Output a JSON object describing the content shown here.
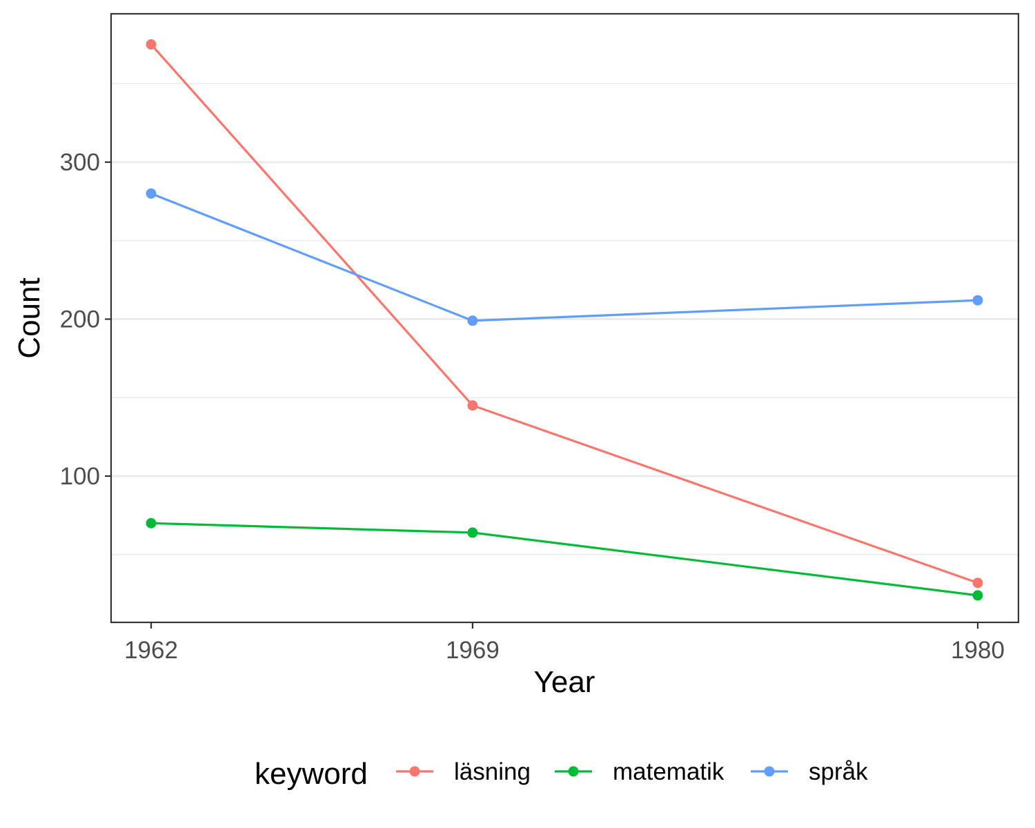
{
  "chart_data": {
    "type": "line",
    "x": [
      "1962",
      "1969",
      "1980"
    ],
    "x_numeric": [
      1962,
      1969,
      1980
    ],
    "xlabel": "Year",
    "ylabel": "Count",
    "ylim": [
      10,
      384
    ],
    "y_ticks": [
      100,
      200,
      300
    ],
    "y_minor_ticks": [
      50,
      150,
      250,
      350
    ],
    "grid": true,
    "legend_title": "keyword",
    "legend_position": "bottom",
    "series": [
      {
        "name": "läsning",
        "color": "#F8766D",
        "values": [
          375,
          145,
          32
        ]
      },
      {
        "name": "matematik",
        "color": "#00BA38",
        "values": [
          70,
          64,
          24
        ]
      },
      {
        "name": "språk",
        "color": "#619CFF",
        "values": [
          280,
          199,
          212
        ]
      }
    ]
  }
}
